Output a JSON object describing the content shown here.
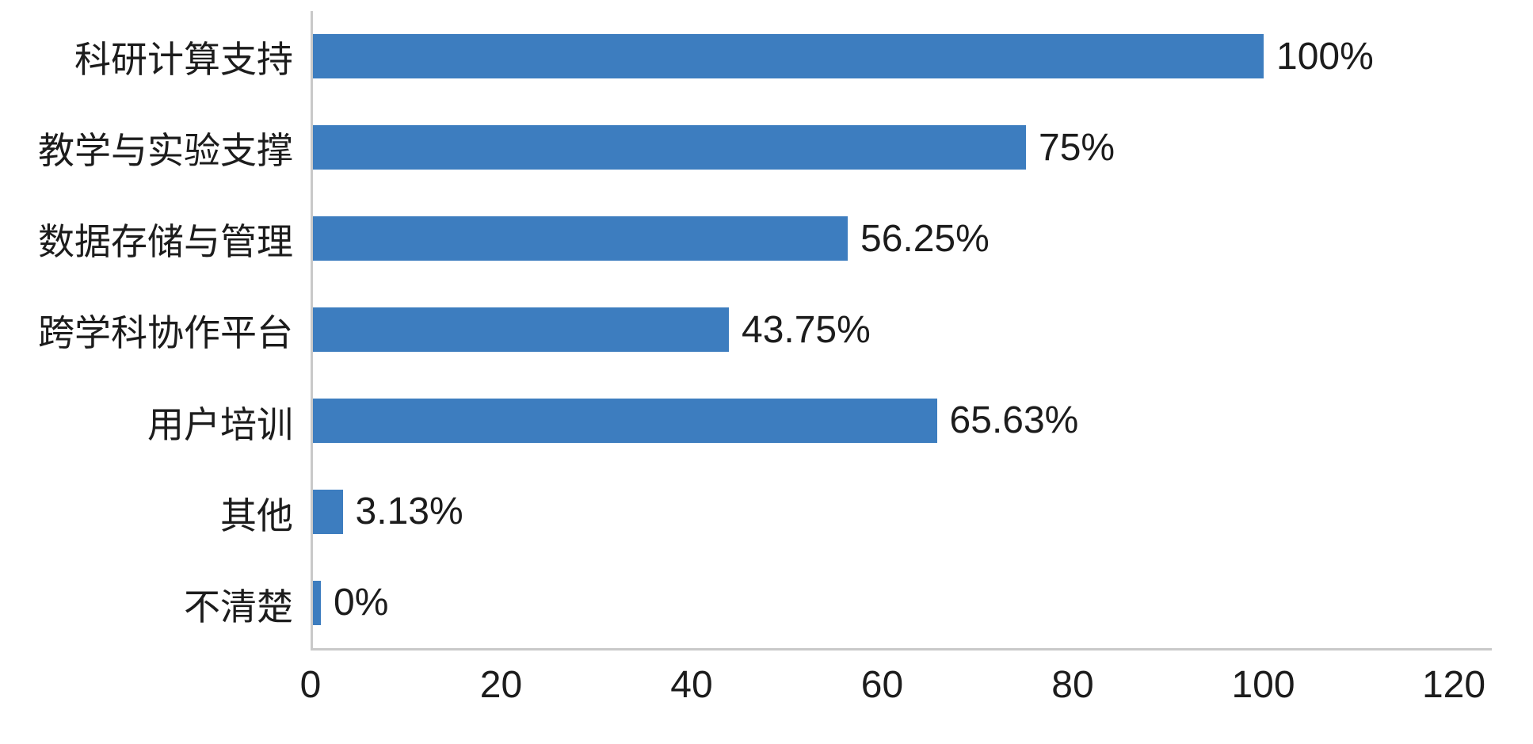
{
  "chart_data": {
    "type": "bar",
    "orientation": "horizontal",
    "title": "",
    "categories": [
      "科研计算支持",
      "教学与实验支撑",
      "数据存储与管理",
      "跨学科协作平台",
      "用户培训",
      "其他",
      "不清楚"
    ],
    "values": [
      100,
      75,
      56.25,
      43.75,
      65.63,
      3.13,
      0
    ],
    "value_labels": [
      "100%",
      "75%",
      "56.25%",
      "43.75%",
      "65.63%",
      "3.13%",
      "0%"
    ],
    "x_ticks": [
      0,
      20,
      40,
      60,
      80,
      100,
      120
    ],
    "xlim": [
      0,
      120
    ],
    "grid": false,
    "legend": false,
    "bar_color": "#3d7dbf",
    "axis_color": "#c9c9c9",
    "text_color": "#1c1c1c",
    "background": "#ffffff"
  }
}
